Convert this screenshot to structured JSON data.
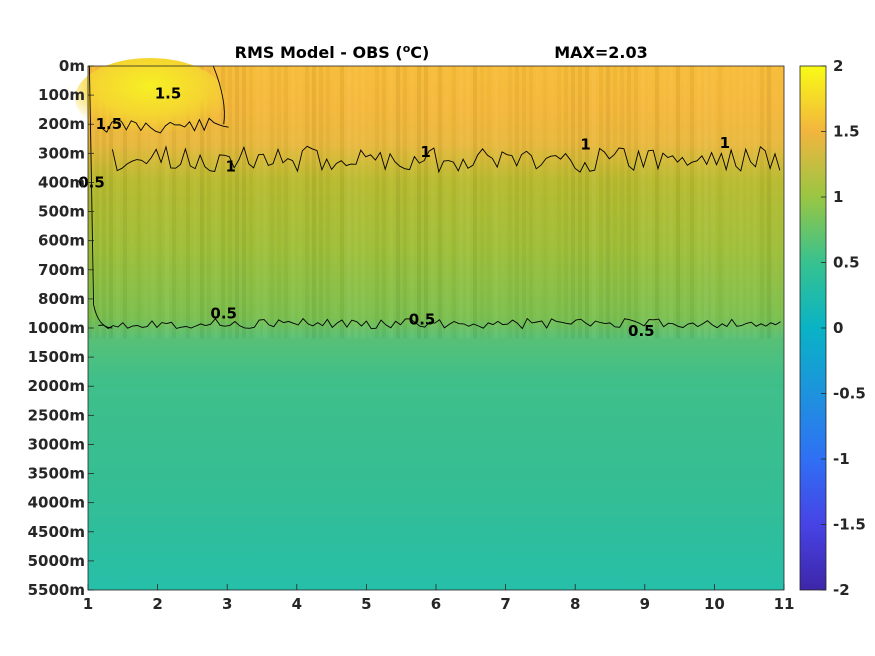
{
  "chart_data": {
    "type": "heatmap",
    "title": "RMS Model - OBS (",
    "title_unit_sup": "o",
    "title_unit_tail": "C)",
    "max_label": "MAX=2.03",
    "x_ticks": [
      "1",
      "2",
      "3",
      "4",
      "5",
      "6",
      "7",
      "8",
      "9",
      "10",
      "11"
    ],
    "xlim": [
      1,
      11
    ],
    "y_ticks": [
      "0m",
      "100m",
      "200m",
      "300m",
      "400m",
      "500m",
      "600m",
      "700m",
      "800m",
      "1000m",
      "1500m",
      "2000m",
      "2500m",
      "3000m",
      "3500m",
      "4000m",
      "4500m",
      "5000m",
      "5500m"
    ],
    "colorbar": {
      "limits": [
        -2,
        2
      ],
      "ticks": [
        "2",
        "1.5",
        "1",
        "0.5",
        "0",
        "-0.5",
        "-1",
        "-1.5",
        "-2"
      ],
      "colormap": "parula"
    },
    "profile_depth_vs_value": [
      {
        "depth": "0m",
        "value": 1.45
      },
      {
        "depth": "100m",
        "value": 1.35
      },
      {
        "depth": "200m",
        "value": 1.25
      },
      {
        "depth": "300m",
        "value": 1.05
      },
      {
        "depth": "400m",
        "value": 0.95
      },
      {
        "depth": "500m",
        "value": 0.9
      },
      {
        "depth": "600m",
        "value": 0.85
      },
      {
        "depth": "700m",
        "value": 0.8
      },
      {
        "depth": "800m",
        "value": 0.7
      },
      {
        "depth": "1000m",
        "value": 0.5
      },
      {
        "depth": "1500m",
        "value": 0.38
      },
      {
        "depth": "2000m",
        "value": 0.34
      },
      {
        "depth": "2500m",
        "value": 0.32
      },
      {
        "depth": "3000m",
        "value": 0.3
      },
      {
        "depth": "3500m",
        "value": 0.28
      },
      {
        "depth": "4000m",
        "value": 0.26
      },
      {
        "depth": "4500m",
        "value": 0.24
      },
      {
        "depth": "5000m",
        "value": 0.2
      },
      {
        "depth": "5500m",
        "value": 0.15
      }
    ],
    "contours": [
      {
        "level": "1.5",
        "label_positions": [
          {
            "x": 2.15,
            "depth_index": 0.95
          },
          {
            "x": 1.3,
            "depth_index": 2.0
          }
        ]
      },
      {
        "level": "1",
        "label_positions": [
          {
            "x": 3.05,
            "depth_index": 3.45
          },
          {
            "x": 5.85,
            "depth_index": 2.95
          },
          {
            "x": 8.15,
            "depth_index": 2.7
          },
          {
            "x": 10.15,
            "depth_index": 2.65
          }
        ]
      },
      {
        "level": "0.5",
        "label_positions": [
          {
            "x": 1.05,
            "depth_index": 4.0
          },
          {
            "x": 2.95,
            "depth_index": 8.5
          },
          {
            "x": 5.8,
            "depth_index": 8.7
          },
          {
            "x": 8.95,
            "depth_index": 9.1
          }
        ]
      }
    ],
    "contour_mid_labels": [
      "1.5",
      "1.5",
      "1",
      "1",
      "1",
      "1",
      "0.5",
      "0.5",
      "0.5",
      "0.5"
    ]
  }
}
